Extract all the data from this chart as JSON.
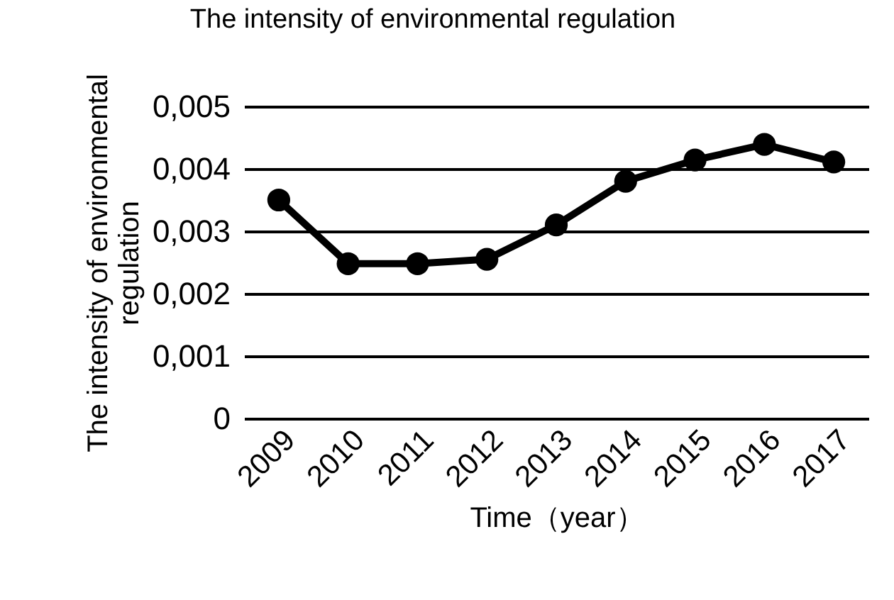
{
  "chart_data": {
    "type": "line",
    "title": "The intensity of environmental regulation",
    "xlabel": "Time（year）",
    "ylabel": "The intensity of environmental\nregulation",
    "categories": [
      "2009",
      "2010",
      "2011",
      "2012",
      "2013",
      "2014",
      "2015",
      "2016",
      "2017"
    ],
    "series": [
      {
        "color": "#000000",
        "values": [
          0.0035,
          0.00248,
          0.00248,
          0.00255,
          0.0031,
          0.0038,
          0.00414,
          0.00439,
          0.00411
        ]
      }
    ],
    "ylim": [
      0,
      0.005
    ],
    "yticks": [
      0,
      {
        "value": 0.001,
        "label": "0,001"
      },
      {
        "value": 0.002,
        "label": "0,002"
      },
      {
        "value": 0.003,
        "label": "0,003"
      },
      {
        "value": 0.004,
        "label": "0,004"
      },
      {
        "value": 0.005,
        "label": "0,005"
      }
    ],
    "grid": "y",
    "marker": "circle",
    "line_style": "solid",
    "legend": false
  }
}
